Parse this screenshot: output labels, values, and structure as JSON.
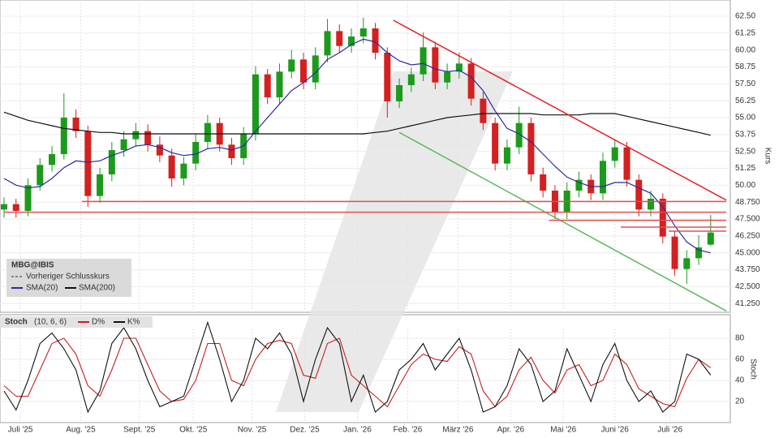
{
  "chart_data": [
    {
      "type": "candlestick",
      "legend_title": "MBG@IBIS",
      "legend_note": "Vorheriger Schlusskurs",
      "ylabel": "Kurs",
      "up_color": "#1c9a1c",
      "down_color": "#d42020",
      "grid": true,
      "ylim": [
        40.6,
        63.7
      ],
      "yticks": [
        {
          "value": 62.5,
          "label": "62.50"
        },
        {
          "value": 61.25,
          "label": "61.25"
        },
        {
          "value": 60,
          "label": "60.00"
        },
        {
          "value": 58.75,
          "label": "58.75"
        },
        {
          "value": 57.5,
          "label": "57.50"
        },
        {
          "value": 56.25,
          "label": "56.25"
        },
        {
          "value": 55,
          "label": "55.00"
        },
        {
          "value": 53.75,
          "label": "53.75"
        },
        {
          "value": 52.5,
          "label": "52.50"
        },
        {
          "value": 51.25,
          "label": "51.25"
        },
        {
          "value": 50,
          "label": "50.00"
        },
        {
          "value": 48.75,
          "label": "48.750"
        },
        {
          "value": 47.5,
          "label": "47.500"
        },
        {
          "value": 46.25,
          "label": "46.250"
        },
        {
          "value": 45,
          "label": "45.000"
        },
        {
          "value": 43.75,
          "label": "43.750"
        },
        {
          "value": 42.5,
          "label": "42.500"
        },
        {
          "value": 41.25,
          "label": "41.250"
        }
      ],
      "x": [
        0,
        1,
        2,
        3,
        4,
        5,
        6,
        7,
        8,
        9,
        10,
        11,
        12,
        13,
        14,
        15,
        16,
        17,
        18,
        19,
        20,
        21,
        22,
        23,
        24,
        25,
        26,
        27,
        28,
        29,
        30,
        31,
        32,
        33,
        34,
        35,
        36,
        37,
        38,
        39,
        40,
        41,
        42,
        43,
        44,
        45,
        46,
        47,
        48,
        49,
        50,
        51,
        52,
        53,
        54,
        55,
        56,
        57,
        58,
        59
      ],
      "open": [
        48.2,
        48.6,
        48.1,
        50.0,
        51.5,
        52.3,
        55.0,
        54.0,
        49.2,
        50.8,
        52.6,
        53.4,
        54.0,
        53.0,
        52.2,
        50.5,
        51.6,
        53.2,
        54.6,
        53.0,
        52.0,
        53.8,
        58.2,
        56.5,
        58.4,
        59.3,
        57.6,
        59.6,
        61.4,
        60.3,
        61.0,
        61.6,
        59.8,
        56.2,
        57.4,
        58.2,
        60.2,
        57.6,
        58.4,
        59.0,
        56.4,
        54.6,
        51.6,
        52.8,
        54.6,
        50.8,
        49.6,
        48.0,
        49.6,
        50.4,
        49.4,
        51.8,
        52.8,
        50.4,
        48.2,
        49.0,
        46.2,
        43.8,
        44.6,
        45.6
      ],
      "high": [
        49.1,
        49.0,
        50.5,
        52.0,
        52.9,
        56.8,
        55.6,
        54.4,
        51.3,
        53.2,
        54.0,
        54.6,
        54.5,
        53.6,
        52.7,
        52.1,
        53.8,
        55.2,
        55.0,
        53.5,
        54.3,
        58.8,
        58.6,
        59.0,
        60.0,
        59.8,
        60.2,
        62.3,
        61.9,
        61.6,
        62.4,
        62.0,
        60.2,
        57.9,
        58.7,
        61.3,
        60.6,
        59.0,
        59.8,
        59.4,
        56.9,
        55.0,
        53.4,
        55.8,
        55.0,
        51.3,
        50.0,
        50.2,
        51.0,
        50.8,
        52.4,
        53.4,
        53.2,
        50.8,
        49.6,
        49.4,
        46.6,
        45.2,
        46.3,
        47.8
      ],
      "low": [
        47.6,
        47.6,
        47.7,
        49.6,
        51.0,
        51.9,
        53.5,
        48.4,
        48.7,
        50.3,
        52.1,
        52.9,
        52.5,
        51.7,
        49.9,
        50.0,
        51.1,
        52.7,
        52.5,
        51.5,
        51.5,
        53.3,
        56.0,
        56.0,
        57.9,
        57.1,
        57.1,
        59.1,
        59.8,
        59.8,
        60.5,
        59.3,
        55.0,
        55.7,
        56.9,
        57.7,
        57.1,
        57.1,
        57.9,
        55.9,
        54.1,
        51.1,
        51.1,
        52.3,
        50.3,
        49.1,
        47.5,
        47.5,
        49.1,
        48.9,
        48.9,
        51.3,
        49.9,
        47.7,
        47.7,
        45.7,
        43.3,
        42.7,
        44.1,
        45.5
      ],
      "close": [
        48.6,
        48.1,
        50.0,
        51.5,
        52.3,
        55.0,
        54.0,
        49.2,
        50.8,
        52.6,
        53.4,
        54.0,
        53.0,
        52.2,
        50.5,
        51.6,
        53.2,
        54.6,
        53.0,
        52.0,
        53.8,
        58.2,
        56.5,
        58.4,
        59.3,
        57.6,
        59.6,
        61.4,
        60.3,
        61.0,
        61.6,
        59.8,
        56.2,
        57.4,
        58.2,
        60.2,
        57.6,
        58.4,
        59.0,
        56.4,
        54.6,
        51.6,
        52.8,
        54.6,
        50.8,
        49.6,
        48.0,
        49.6,
        50.4,
        49.4,
        51.8,
        52.8,
        50.4,
        48.2,
        49.0,
        46.2,
        43.8,
        44.6,
        45.4,
        46.5
      ],
      "series": [
        {
          "name": "SMA(20)",
          "color": "#2a2a9e",
          "values": [
            50.5,
            50.0,
            49.8,
            49.9,
            50.5,
            51.3,
            51.8,
            51.7,
            51.8,
            52.2,
            52.5,
            52.9,
            53.0,
            52.8,
            52.4,
            52.2,
            52.3,
            52.7,
            52.8,
            52.6,
            52.9,
            54.0,
            55.0,
            56.0,
            57.0,
            57.6,
            58.3,
            59.3,
            59.8,
            60.4,
            60.8,
            60.6,
            59.8,
            59.2,
            58.9,
            59.0,
            58.6,
            58.4,
            58.5,
            58.0,
            57.0,
            55.5,
            54.2,
            53.8,
            53.2,
            52.3,
            51.4,
            50.6,
            50.2,
            49.9,
            49.9,
            50.2,
            50.2,
            49.8,
            49.4,
            48.4,
            47.0,
            45.8,
            45.2,
            45.0
          ]
        },
        {
          "name": "SMA(200)",
          "color": "#111111",
          "values": [
            55.4,
            55.1,
            54.8,
            54.6,
            54.4,
            54.2,
            54.1,
            54.0,
            53.9,
            53.9,
            53.8,
            53.8,
            53.8,
            53.8,
            53.8,
            53.8,
            53.8,
            53.8,
            53.8,
            53.8,
            53.8,
            53.8,
            53.8,
            53.8,
            53.8,
            53.8,
            53.8,
            53.8,
            53.8,
            53.8,
            53.8,
            53.9,
            54.0,
            54.2,
            54.4,
            54.6,
            54.8,
            55.0,
            55.1,
            55.2,
            55.3,
            55.3,
            55.3,
            55.3,
            55.3,
            55.2,
            55.2,
            55.2,
            55.2,
            55.3,
            55.3,
            55.3,
            55.1,
            54.9,
            54.7,
            54.5,
            54.3,
            54.1,
            53.9,
            53.7
          ]
        }
      ],
      "lines": [
        {
          "x": [
            32.5,
            60.3
          ],
          "y": [
            62.2,
            48.9
          ],
          "color": "#e8202a"
        },
        {
          "x": [
            33.0,
            60.3
          ],
          "y": [
            53.9,
            40.7
          ],
          "color": "#5cb85c"
        },
        {
          "x": [
            6.5,
            60.3
          ],
          "y": [
            48.8,
            48.8
          ],
          "color": "#e05050"
        },
        {
          "x": [
            0,
            60.3
          ],
          "y": [
            48.0,
            48.0
          ],
          "color": "#e05050"
        },
        {
          "x": [
            45.5,
            60.3
          ],
          "y": [
            47.4,
            47.4
          ],
          "color": "#e05050"
        },
        {
          "x": [
            51.5,
            60.3
          ],
          "y": [
            46.9,
            46.9
          ],
          "color": "#e05050"
        },
        {
          "x": [
            55.5,
            60.3
          ],
          "y": [
            46.6,
            46.6
          ],
          "color": "#e05050"
        }
      ]
    },
    {
      "type": "line",
      "title": "Stoch",
      "subtitle": "(10, 6, 6)",
      "ylabel": "Stoch",
      "grid": true,
      "xlim": [
        0,
        60.3
      ],
      "xticks": [
        {
          "value": 1.36,
          "label": "Juli '25"
        },
        {
          "value": 6.4,
          "label": "Aug. '25"
        },
        {
          "value": 11.3,
          "label": "Sept. '25"
        },
        {
          "value": 15.8,
          "label": "Okt. '25"
        },
        {
          "value": 20.7,
          "label": "Nov. '25"
        },
        {
          "value": 25.1,
          "label": "Dez. '25"
        },
        {
          "value": 29.5,
          "label": "Jan. '26"
        },
        {
          "value": 33.7,
          "label": "Feb. '26"
        },
        {
          "value": 37.9,
          "label": "März '26"
        },
        {
          "value": 42.3,
          "label": "Apr. '26"
        },
        {
          "value": 46.7,
          "label": "Mai '26"
        },
        {
          "value": 51.0,
          "label": "Juni '26"
        },
        {
          "value": 55.6,
          "label": "Juli '26"
        }
      ],
      "ylim": [
        0,
        100
      ],
      "yticks": [
        80,
        60,
        40,
        20
      ],
      "x": [
        0,
        1,
        2,
        3,
        4,
        5,
        6,
        7,
        8,
        9,
        10,
        11,
        12,
        13,
        14,
        15,
        16,
        17,
        18,
        19,
        20,
        21,
        22,
        23,
        24,
        25,
        26,
        27,
        28,
        29,
        30,
        31,
        32,
        33,
        34,
        35,
        36,
        37,
        38,
        39,
        40,
        41,
        42,
        43,
        44,
        45,
        46,
        47,
        48,
        49,
        50,
        51,
        52,
        53,
        54,
        55,
        56,
        57,
        58,
        59
      ],
      "series": [
        {
          "name": "D%",
          "color": "#c42020",
          "values": [
            35,
            25,
            25,
            50,
            75,
            80,
            65,
            35,
            25,
            50,
            80,
            80,
            55,
            30,
            20,
            22,
            40,
            75,
            75,
            40,
            35,
            60,
            75,
            78,
            75,
            45,
            42,
            75,
            80,
            45,
            35,
            25,
            15,
            35,
            55,
            65,
            60,
            58,
            72,
            65,
            30,
            15,
            25,
            50,
            62,
            40,
            28,
            50,
            55,
            35,
            40,
            65,
            55,
            32,
            25,
            18,
            15,
            42,
            60,
            52
          ]
        },
        {
          "name": "K%",
          "color": "#111111",
          "values": [
            30,
            12,
            40,
            75,
            85,
            70,
            50,
            10,
            30,
            75,
            90,
            70,
            40,
            15,
            20,
            25,
            60,
            95,
            60,
            20,
            40,
            80,
            70,
            85,
            65,
            20,
            60,
            90,
            75,
            20,
            45,
            10,
            20,
            50,
            60,
            75,
            50,
            65,
            80,
            50,
            10,
            15,
            35,
            70,
            55,
            20,
            30,
            70,
            45,
            20,
            55,
            75,
            40,
            20,
            30,
            10,
            20,
            65,
            60,
            45
          ]
        }
      ]
    }
  ]
}
